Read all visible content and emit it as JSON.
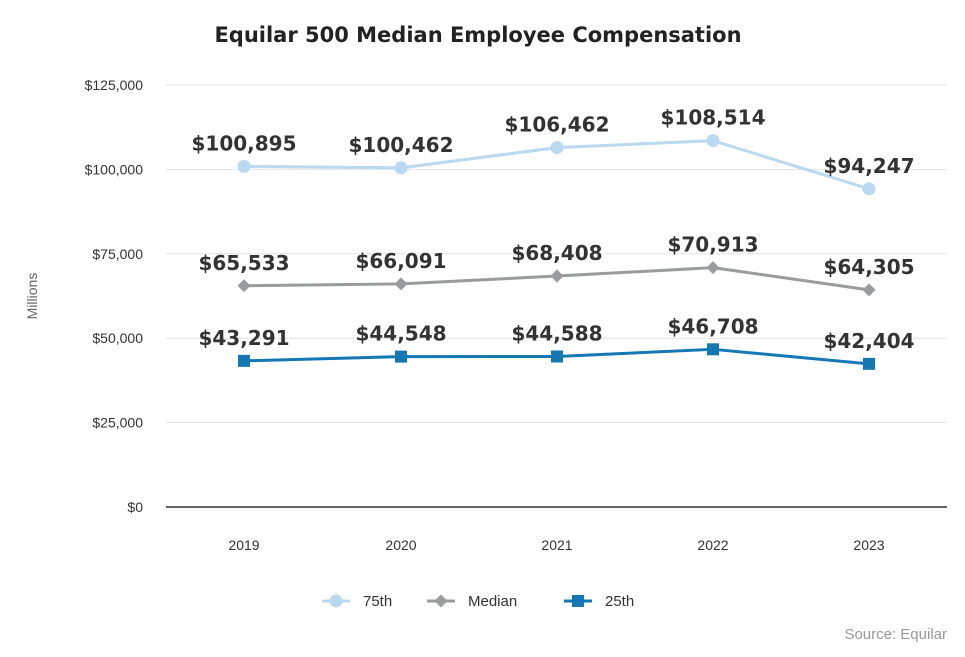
{
  "chart_data": {
    "type": "line",
    "title": "Equilar 500 Median Employee Compensation",
    "ylabel": "Millions",
    "xlabel": "",
    "source": "Source: Equilar",
    "categories": [
      "2019",
      "2020",
      "2021",
      "2022",
      "2023"
    ],
    "ylim": [
      0,
      125000
    ],
    "yticks": [
      0,
      25000,
      50000,
      75000,
      100000,
      125000
    ],
    "ytick_labels": [
      "$0",
      "$25,000",
      "$50,000",
      "$75,000",
      "$100,000",
      "$125,000"
    ],
    "grid": true,
    "legend_position": "bottom",
    "series": [
      {
        "name": "75th",
        "marker": "circle",
        "color": "#b8d9f0",
        "values": [
          100895,
          100462,
          106462,
          108514,
          94247
        ],
        "labels": [
          "$100,895",
          "$100,462",
          "$106,462",
          "$108,514",
          "$94,247"
        ]
      },
      {
        "name": "Median",
        "marker": "diamond",
        "color": "#999b9e",
        "values": [
          65533,
          66091,
          68408,
          70913,
          64305
        ],
        "labels": [
          "$65,533",
          "$66,091",
          "$68,408",
          "$70,913",
          "$64,305"
        ]
      },
      {
        "name": "25th",
        "marker": "square",
        "color": "#1478b4",
        "values": [
          43291,
          44548,
          44588,
          46708,
          42404
        ],
        "labels": [
          "$43,291",
          "$44,548",
          "$44,588",
          "$46,708",
          "$42,404"
        ]
      }
    ]
  }
}
